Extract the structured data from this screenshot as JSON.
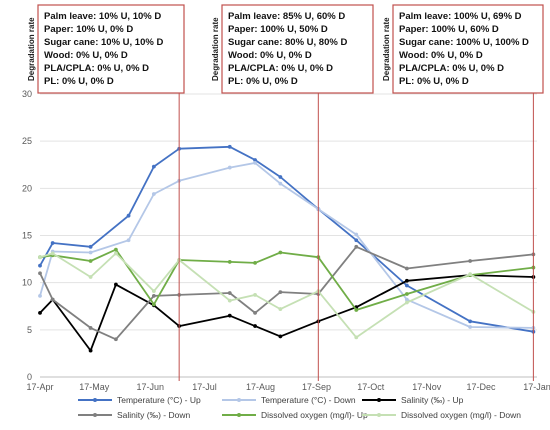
{
  "chart_data": {
    "type": "line",
    "x_ticks": [
      "17-Apr",
      "17-May",
      "17-Jun",
      "17-Jul",
      "17-Aug",
      "17-Sep",
      "17-Oct",
      "17-Nov",
      "17-Dec",
      "17-Jan"
    ],
    "ylim": [
      0,
      30
    ],
    "y_ticks": [
      0,
      5,
      10,
      15,
      20,
      25,
      30
    ],
    "grid": true,
    "legend_position": "bottom",
    "series": [
      {
        "name": "Temperature (°C) - Up",
        "color": "#4472c4",
        "points": [
          [
            "2017-04-01",
            11.8
          ],
          [
            "2017-04-08",
            14.2
          ],
          [
            "2017-04-29",
            13.8
          ],
          [
            "2017-05-20",
            17.1
          ],
          [
            "2017-06-03",
            22.3
          ],
          [
            "2017-06-17",
            24.2
          ],
          [
            "2017-07-15",
            24.4
          ],
          [
            "2017-07-29",
            23.0
          ],
          [
            "2017-08-12",
            21.2
          ],
          [
            "2017-09-02",
            17.8
          ],
          [
            "2017-09-23",
            14.5
          ],
          [
            "2017-10-21",
            9.7
          ],
          [
            "2017-11-25",
            5.9
          ],
          [
            "2017-12-30",
            4.8
          ]
        ]
      },
      {
        "name": "Temperature (°C) - Down",
        "color": "#b4c7e7",
        "points": [
          [
            "2017-04-01",
            8.6
          ],
          [
            "2017-04-08",
            13.3
          ],
          [
            "2017-04-29",
            13.2
          ],
          [
            "2017-05-20",
            14.5
          ],
          [
            "2017-06-03",
            19.4
          ],
          [
            "2017-06-17",
            20.8
          ],
          [
            "2017-07-15",
            22.2
          ],
          [
            "2017-07-29",
            22.7
          ],
          [
            "2017-08-12",
            20.5
          ],
          [
            "2017-09-02",
            17.8
          ],
          [
            "2017-09-23",
            15.1
          ],
          [
            "2017-10-21",
            8.2
          ],
          [
            "2017-11-25",
            5.3
          ],
          [
            "2017-12-30",
            5.2
          ]
        ]
      },
      {
        "name": "Salinity (‰) - Up",
        "color": "#000000",
        "points": [
          [
            "2017-04-01",
            6.8
          ],
          [
            "2017-04-08",
            8.2
          ],
          [
            "2017-04-29",
            2.8
          ],
          [
            "2017-05-13",
            9.8
          ],
          [
            "2017-06-03",
            7.6
          ],
          [
            "2017-06-17",
            5.4
          ],
          [
            "2017-07-15",
            6.5
          ],
          [
            "2017-07-29",
            5.4
          ],
          [
            "2017-08-12",
            4.3
          ],
          [
            "2017-09-02",
            5.9
          ],
          [
            "2017-09-23",
            7.4
          ],
          [
            "2017-10-21",
            10.2
          ],
          [
            "2017-11-25",
            10.8
          ],
          [
            "2017-12-30",
            10.6
          ]
        ]
      },
      {
        "name": "Salinity (‰) - Down",
        "color": "#808080",
        "points": [
          [
            "2017-04-01",
            11.0
          ],
          [
            "2017-04-08",
            8.2
          ],
          [
            "2017-04-29",
            5.2
          ],
          [
            "2017-05-13",
            4.0
          ],
          [
            "2017-06-03",
            8.6
          ],
          [
            "2017-06-17",
            8.7
          ],
          [
            "2017-07-15",
            8.9
          ],
          [
            "2017-07-29",
            6.8
          ],
          [
            "2017-08-12",
            9.0
          ],
          [
            "2017-09-02",
            8.8
          ],
          [
            "2017-09-23",
            13.8
          ],
          [
            "2017-10-21",
            11.5
          ],
          [
            "2017-11-25",
            12.3
          ],
          [
            "2017-12-30",
            13.0
          ]
        ]
      },
      {
        "name": "Dissolved oxygen (mg/l)- Up",
        "color": "#70ad47",
        "points": [
          [
            "2017-04-01",
            12.7
          ],
          [
            "2017-04-08",
            12.9
          ],
          [
            "2017-04-29",
            12.3
          ],
          [
            "2017-05-13",
            13.5
          ],
          [
            "2017-06-03",
            7.7
          ],
          [
            "2017-06-17",
            12.4
          ],
          [
            "2017-07-15",
            12.2
          ],
          [
            "2017-07-29",
            12.1
          ],
          [
            "2017-08-12",
            13.2
          ],
          [
            "2017-09-02",
            12.7
          ],
          [
            "2017-09-23",
            7.1
          ],
          [
            "2017-10-21",
            8.8
          ],
          [
            "2017-11-25",
            10.8
          ],
          [
            "2017-12-30",
            11.6
          ]
        ]
      },
      {
        "name": "Dissolved oxygen (mg/l) - Down",
        "color": "#c5e0b4",
        "points": [
          [
            "2017-04-01",
            12.7
          ],
          [
            "2017-04-08",
            13.1
          ],
          [
            "2017-04-29",
            10.6
          ],
          [
            "2017-05-13",
            13.1
          ],
          [
            "2017-06-03",
            9.1
          ],
          [
            "2017-06-17",
            12.4
          ],
          [
            "2017-07-15",
            8.1
          ],
          [
            "2017-07-29",
            8.7
          ],
          [
            "2017-08-12",
            7.2
          ],
          [
            "2017-09-02",
            9.1
          ],
          [
            "2017-09-23",
            4.2
          ],
          [
            "2017-10-21",
            7.9
          ],
          [
            "2017-11-25",
            10.9
          ],
          [
            "2017-12-30",
            6.9
          ]
        ]
      }
    ],
    "vertical_markers": [
      "2017-06-17",
      "2017-09-02",
      "2017-12-30"
    ],
    "annotations": [
      {
        "label": "Degradation rate",
        "lines": [
          "Palm leave: 10% U, 10% D",
          "Paper: 10% U, 0% D",
          "Sugar cane: 10% U, 10% D",
          "Wood:  0% U, 0% D",
          "PLA/CPLA:  0% U, 0% D",
          "PL:  0% U, 0% D"
        ]
      },
      {
        "label": "Degradation rate",
        "lines": [
          "Palm leave: 85% U, 60% D",
          "Paper: 100% U, 50% D",
          "Sugar cane: 80% U, 80% D",
          "Wood:  0% U, 0% D",
          "PLA/CPLA:  0% U, 0% D",
          "PL:  0% U, 0% D"
        ]
      },
      {
        "label": "Degradation rate",
        "lines": [
          "Palm leave: 100% U, 69% D",
          "Paper: 100% U, 60% D",
          "Sugar cane: 100% U, 100% D",
          "Wood:  0% U, 0% D",
          "PLA/CPLA:  0% U, 0% D",
          "PL:  0% U, 0% D"
        ]
      }
    ],
    "annotation_border_color": "#c0504d"
  }
}
